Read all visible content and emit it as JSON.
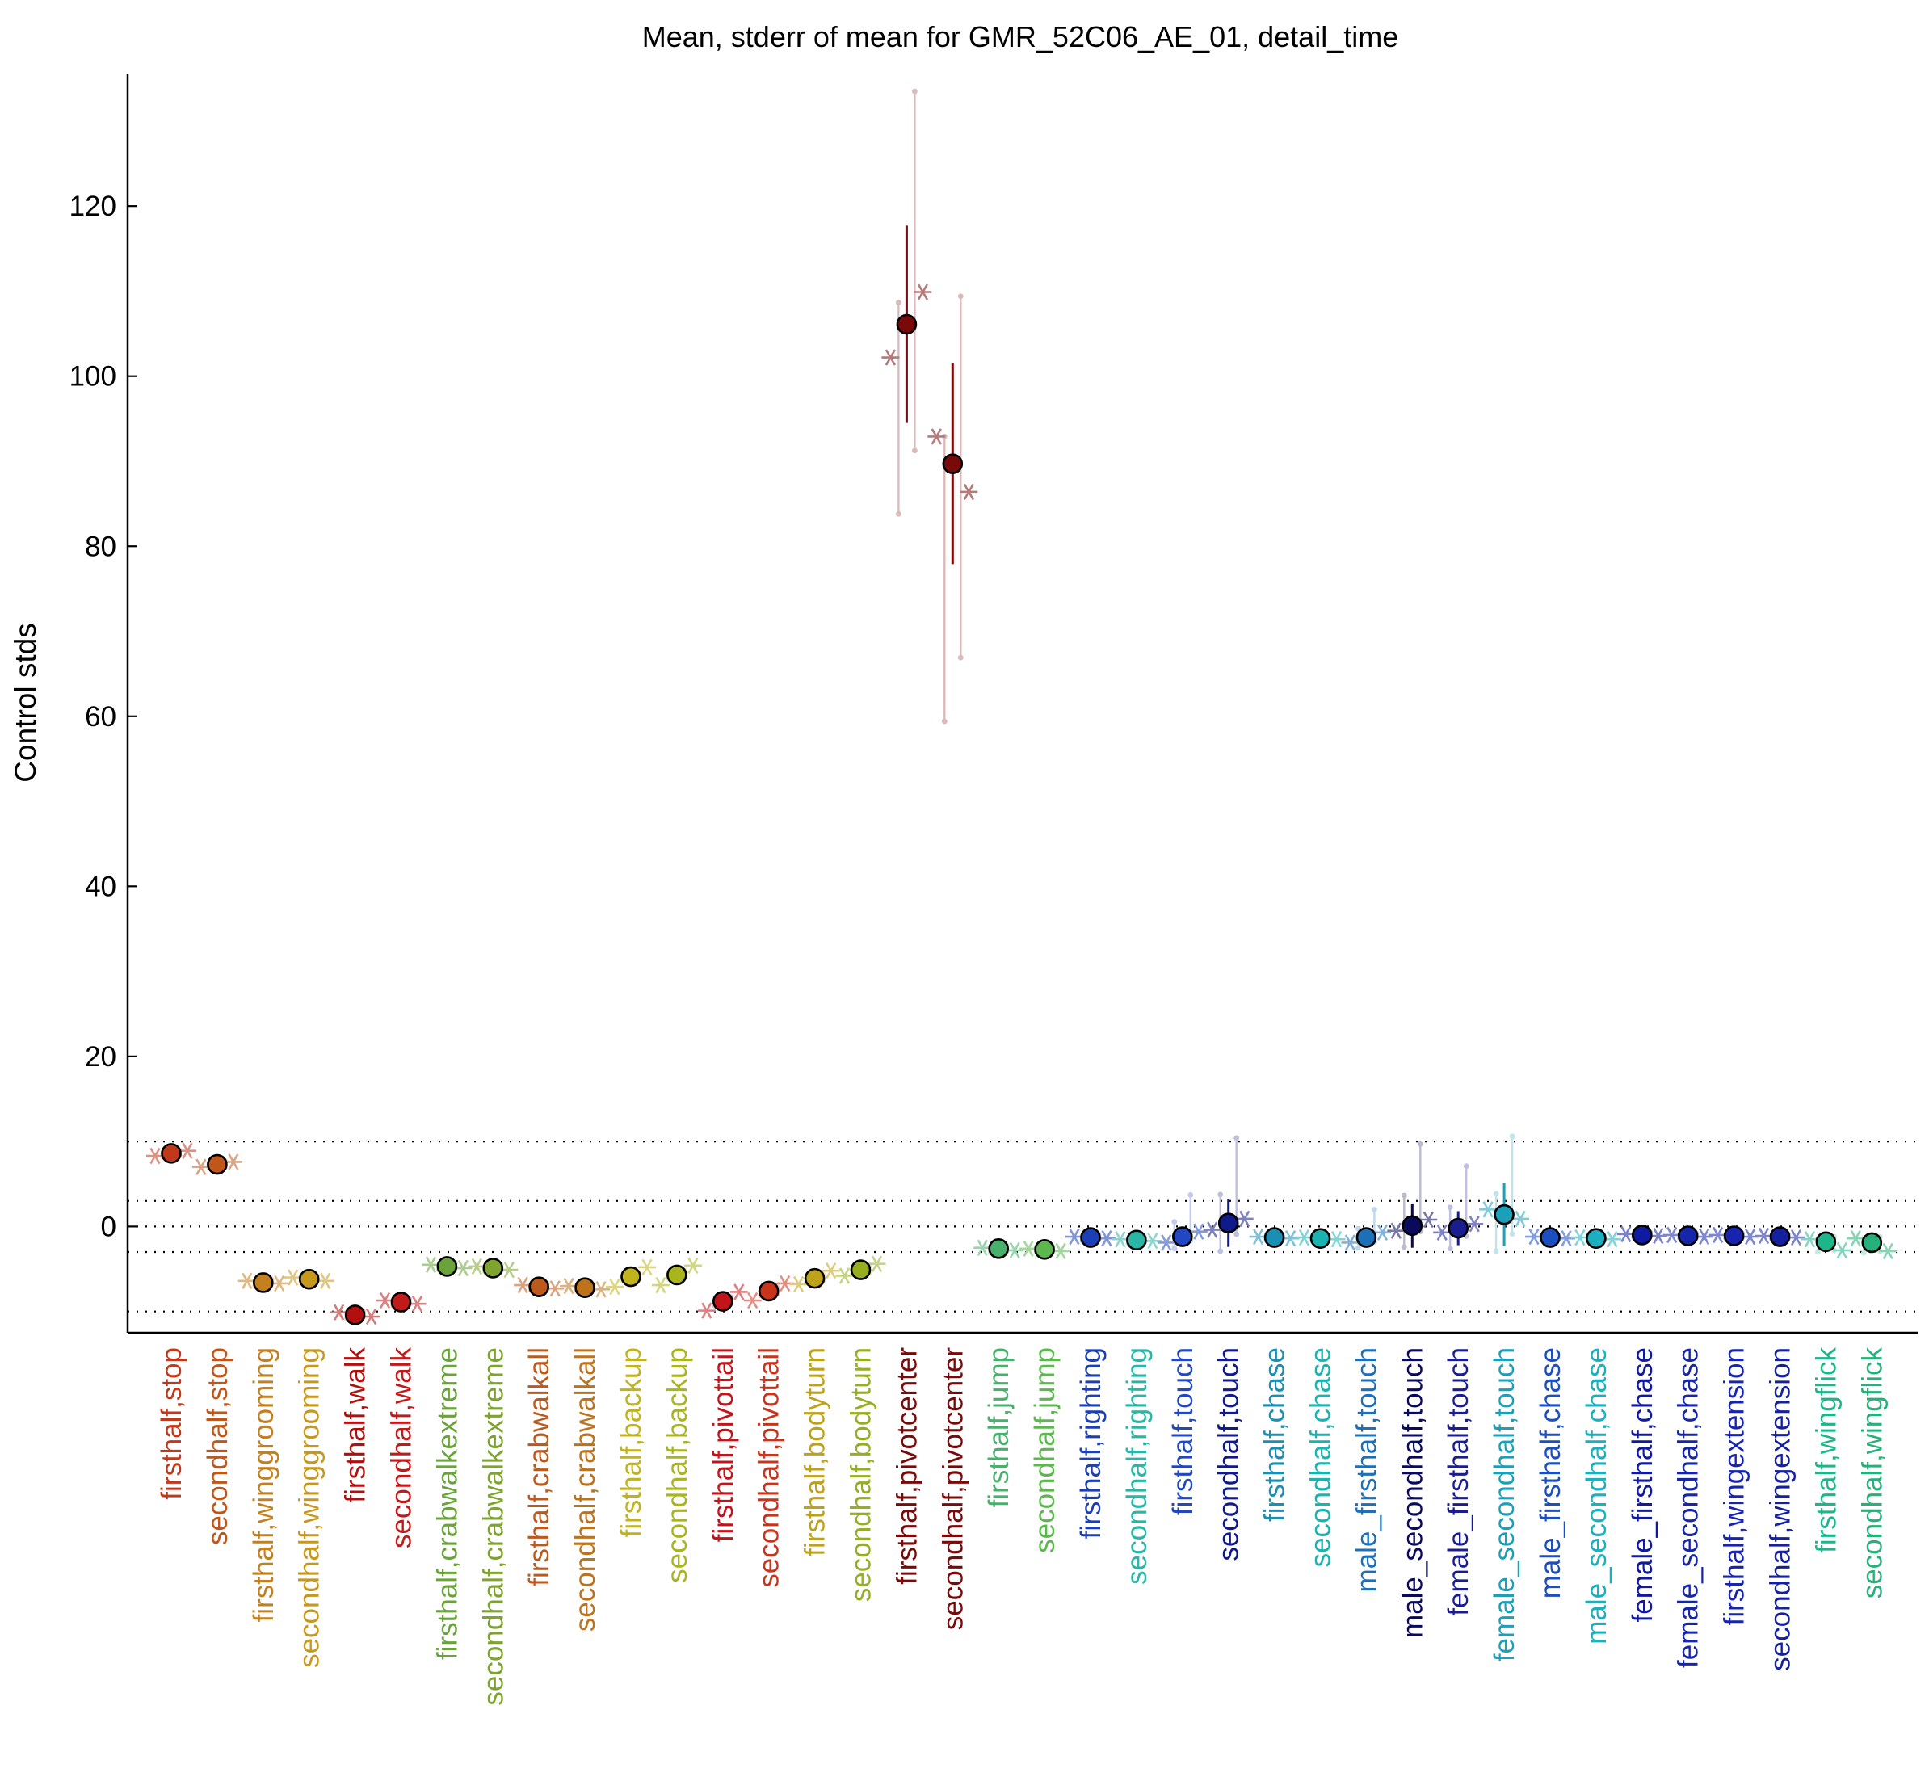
{
  "chart_data": {
    "type": "scatter",
    "title": "Mean, stderr of mean for GMR_52C06_AE_01, detail_time",
    "xlabel": "",
    "ylabel": "Control stds",
    "ylim": [
      -12.5,
      135.5
    ],
    "yticks": [
      0,
      20,
      40,
      60,
      80,
      100,
      120
    ],
    "reference_lines": [
      -10,
      -3,
      0,
      3,
      10
    ],
    "grid": false,
    "points": [
      {
        "label": "firsthalf,stop",
        "color": "#c0391b",
        "mean": 8.6,
        "stderr": 0.3,
        "fly_means": [
          8.3,
          8.9
        ],
        "sem_extent": [
          8.2,
          9.0
        ]
      },
      {
        "label": "secondhalf,stop",
        "color": "#c0561a",
        "mean": 7.3,
        "stderr": 0.3,
        "fly_means": [
          7.0,
          7.6
        ],
        "sem_extent": [
          6.9,
          7.7
        ]
      },
      {
        "label": "firsthalf,winggrooming",
        "color": "#c5801e",
        "mean": -6.6,
        "stderr": 0.3,
        "fly_means": [
          -6.4,
          -6.7
        ],
        "sem_extent": [
          -7.0,
          -6.2
        ]
      },
      {
        "label": "secondhalf,winggrooming",
        "color": "#c6981d",
        "mean": -6.2,
        "stderr": 0.3,
        "fly_means": [
          -6.0,
          -6.4
        ],
        "sem_extent": [
          -6.6,
          -5.8
        ]
      },
      {
        "label": "firsthalf,walk",
        "color": "#b30f0f",
        "mean": -10.4,
        "stderr": 0.3,
        "fly_means": [
          -10.1,
          -10.6
        ],
        "sem_extent": [
          -10.8,
          -10.0
        ]
      },
      {
        "label": "secondhalf,walk",
        "color": "#c01a1a",
        "mean": -8.9,
        "stderr": 0.3,
        "fly_means": [
          -8.7,
          -9.1
        ],
        "sem_extent": [
          -9.3,
          -8.5
        ]
      },
      {
        "label": "firsthalf,crabwalkextreme",
        "color": "#6aa33a",
        "mean": -4.7,
        "stderr": 0.3,
        "fly_means": [
          -4.5,
          -4.9
        ],
        "sem_extent": [
          -5.1,
          -4.3
        ]
      },
      {
        "label": "secondhalf,crabwalkextreme",
        "color": "#7ea32e",
        "mean": -4.9,
        "stderr": 0.3,
        "fly_means": [
          -4.7,
          -5.1
        ],
        "sem_extent": [
          -5.3,
          -4.5
        ]
      },
      {
        "label": "firsthalf,crabwalkall",
        "color": "#bb5a1c",
        "mean": -7.1,
        "stderr": 0.3,
        "fly_means": [
          -6.9,
          -7.3
        ],
        "sem_extent": [
          -7.5,
          -6.7
        ]
      },
      {
        "label": "secondhalf,crabwalkall",
        "color": "#bd731b",
        "mean": -7.2,
        "stderr": 0.3,
        "fly_means": [
          -7.0,
          -7.4
        ],
        "sem_extent": [
          -7.6,
          -6.8
        ]
      },
      {
        "label": "firsthalf,backup",
        "color": "#c0b31e",
        "mean": -5.9,
        "stderr": 0.4,
        "fly_means": [
          -7.1,
          -4.8
        ],
        "sem_extent": [
          -6.4,
          -5.4
        ]
      },
      {
        "label": "secondhalf,backup",
        "color": "#a9b51c",
        "mean": -5.7,
        "stderr": 0.4,
        "fly_means": [
          -6.9,
          -4.6
        ],
        "sem_extent": [
          -6.2,
          -5.2
        ]
      },
      {
        "label": "firsthalf,pivottail",
        "color": "#c2141b",
        "mean": -8.8,
        "stderr": 0.3,
        "fly_means": [
          -9.9,
          -7.7
        ],
        "sem_extent": [
          -9.3,
          -8.3
        ]
      },
      {
        "label": "secondhalf,pivottail",
        "color": "#c9341b",
        "mean": -7.6,
        "stderr": 0.3,
        "fly_means": [
          -8.7,
          -6.7
        ],
        "sem_extent": [
          -8.1,
          -7.1
        ]
      },
      {
        "label": "firsthalf,bodyturn",
        "color": "#bfa21c",
        "mean": -6.1,
        "stderr": 0.3,
        "fly_means": [
          -6.8,
          -5.2
        ],
        "sem_extent": [
          -6.6,
          -5.6
        ]
      },
      {
        "label": "secondhalf,bodyturn",
        "color": "#97ad22",
        "mean": -5.1,
        "stderr": 0.3,
        "fly_means": [
          -5.8,
          -4.4
        ],
        "sem_extent": [
          -5.6,
          -4.6
        ]
      },
      {
        "label": "firsthalf,pivotcenter",
        "color": "#7a0a0a",
        "mean": 106.1,
        "stderr": 11.6,
        "fly_means": [
          102.2,
          109.9
        ],
        "sem_extent": [
          83.8,
          133.5
        ]
      },
      {
        "label": "secondhalf,pivotcenter",
        "color": "#7a0a0a",
        "mean": 89.7,
        "stderr": 11.8,
        "fly_means": [
          92.9,
          86.4
        ],
        "sem_extent": [
          59.4,
          109.4
        ]
      },
      {
        "label": "firsthalf,jump",
        "color": "#47b06a",
        "mean": -2.6,
        "stderr": 0.3,
        "fly_means": [
          -2.5,
          -2.8
        ],
        "sem_extent": [
          -3.0,
          -2.2
        ]
      },
      {
        "label": "secondhalf,jump",
        "color": "#5cb84e",
        "mean": -2.7,
        "stderr": 0.3,
        "fly_means": [
          -2.6,
          -2.9
        ],
        "sem_extent": [
          -3.1,
          -2.3
        ]
      },
      {
        "label": "firsthalf,righting",
        "color": "#1b3fb5",
        "mean": -1.3,
        "stderr": 0.3,
        "fly_means": [
          -1.2,
          -1.4
        ],
        "sem_extent": [
          -1.7,
          -0.9
        ]
      },
      {
        "label": "secondhalf,righting",
        "color": "#2ab5a6",
        "mean": -1.6,
        "stderr": 0.3,
        "fly_means": [
          -1.5,
          -1.7
        ],
        "sem_extent": [
          -2.0,
          -1.2
        ]
      },
      {
        "label": "firsthalf,touch",
        "color": "#2147c2",
        "mean": -1.2,
        "stderr": 0.4,
        "fly_means": [
          -1.9,
          -0.6
        ],
        "sem_extent": [
          -2.6,
          3.7
        ]
      },
      {
        "label": "secondhalf,touch",
        "color": "#101a8a",
        "mean": 0.4,
        "stderr": 2.8,
        "fly_means": [
          -0.4,
          0.9
        ],
        "sem_extent": [
          -2.9,
          10.4
        ]
      },
      {
        "label": "firsthalf,chase",
        "color": "#1b8fb3",
        "mean": -1.3,
        "stderr": 0.2,
        "fly_means": [
          -1.2,
          -1.4
        ],
        "sem_extent": [
          -1.6,
          -1.0
        ]
      },
      {
        "label": "secondhalf,chase",
        "color": "#1bb3b0",
        "mean": -1.4,
        "stderr": 0.2,
        "fly_means": [
          -1.3,
          -1.5
        ],
        "sem_extent": [
          -1.7,
          -1.1
        ]
      },
      {
        "label": "male_firsthalf,touch",
        "color": "#1d6fb8",
        "mean": -1.3,
        "stderr": 0.4,
        "fly_means": [
          -1.9,
          -0.7
        ],
        "sem_extent": [
          -2.5,
          2.0
        ]
      },
      {
        "label": "male_secondhalf,touch",
        "color": "#0a0a5c",
        "mean": 0.1,
        "stderr": 2.6,
        "fly_means": [
          -0.5,
          0.8
        ],
        "sem_extent": [
          -2.4,
          9.7
        ]
      },
      {
        "label": "female_firsthalf,touch",
        "color": "#1a1d8f",
        "mean": -0.2,
        "stderr": 2.0,
        "fly_means": [
          -0.7,
          0.3
        ],
        "sem_extent": [
          -2.6,
          7.1
        ]
      },
      {
        "label": "female_secondhalf,touch",
        "color": "#1aa0b8",
        "mean": 1.4,
        "stderr": 3.7,
        "fly_means": [
          2.0,
          0.9
        ],
        "sem_extent": [
          -2.9,
          10.6
        ]
      },
      {
        "label": "male_firsthalf,chase",
        "color": "#1b4fc0",
        "mean": -1.3,
        "stderr": 0.2,
        "fly_means": [
          -1.2,
          -1.4
        ],
        "sem_extent": [
          -1.6,
          -1.0
        ]
      },
      {
        "label": "male_secondhalf,chase",
        "color": "#1ab0c0",
        "mean": -1.4,
        "stderr": 0.2,
        "fly_means": [
          -1.3,
          -1.5
        ],
        "sem_extent": [
          -1.7,
          -1.1
        ]
      },
      {
        "label": "female_firsthalf,chase",
        "color": "#101aa0",
        "mean": -1.0,
        "stderr": 0.2,
        "fly_means": [
          -0.9,
          -1.1
        ],
        "sem_extent": [
          -1.3,
          -0.7
        ]
      },
      {
        "label": "female_secondhalf,chase",
        "color": "#1526a8",
        "mean": -1.1,
        "stderr": 0.2,
        "fly_means": [
          -1.0,
          -1.2
        ],
        "sem_extent": [
          -1.4,
          -0.8
        ]
      },
      {
        "label": "firsthalf,wingextension",
        "color": "#1624b0",
        "mean": -1.1,
        "stderr": 0.2,
        "fly_means": [
          -1.0,
          -1.2
        ],
        "sem_extent": [
          -1.4,
          -0.8
        ]
      },
      {
        "label": "secondhalf,wingextension",
        "color": "#14209e",
        "mean": -1.2,
        "stderr": 0.2,
        "fly_means": [
          -1.1,
          -1.3
        ],
        "sem_extent": [
          -1.5,
          -0.9
        ]
      },
      {
        "label": "firsthalf,wingflick",
        "color": "#1db58a",
        "mean": -1.8,
        "stderr": 0.3,
        "fly_means": [
          -1.5,
          -2.8
        ],
        "sem_extent": [
          -3.0,
          -1.2
        ]
      },
      {
        "label": "secondhalf,wingflick",
        "color": "#27b07a",
        "mean": -1.9,
        "stderr": 0.3,
        "fly_means": [
          -1.4,
          -2.9
        ],
        "sem_extent": [
          -3.1,
          -1.2
        ]
      }
    ]
  }
}
